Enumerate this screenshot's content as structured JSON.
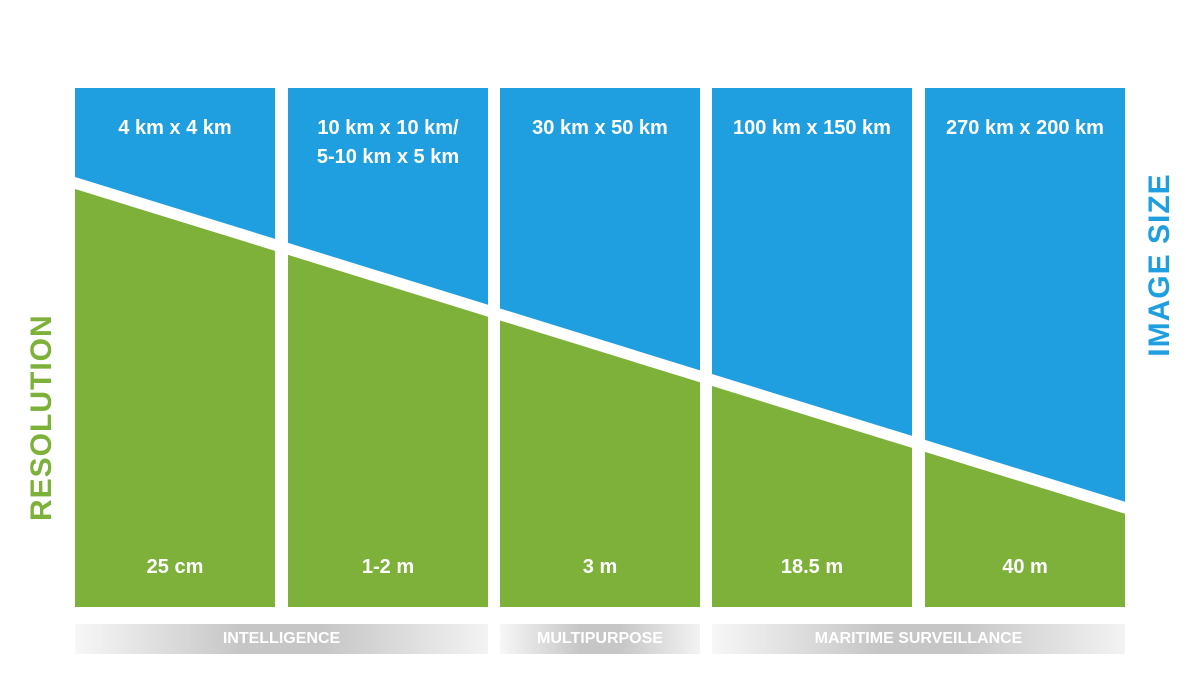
{
  "colors": {
    "blue": "#1f9fe0",
    "green": "#7db13a",
    "band": "#c6c6c6"
  },
  "axes": {
    "resolution": "RESOLUTION",
    "image_size": "IMAGE SIZE"
  },
  "columns": [
    {
      "image_size": "4 km x 4 km",
      "resolution": "25 cm"
    },
    {
      "image_size": "10 km x 10 km/\n5-10 km x 5 km",
      "resolution": "1-2 m"
    },
    {
      "image_size": "30 km x 50 km",
      "resolution": "3 m"
    },
    {
      "image_size": "100 km x 150 km",
      "resolution": "18.5 m"
    },
    {
      "image_size": "270 km x 200 km",
      "resolution": "40 m"
    }
  ],
  "categories": [
    {
      "label": "INTELLIGENCE"
    },
    {
      "label": "MULTIPURPOSE"
    },
    {
      "label": "MARITIME SURVEILLANCE"
    }
  ]
}
